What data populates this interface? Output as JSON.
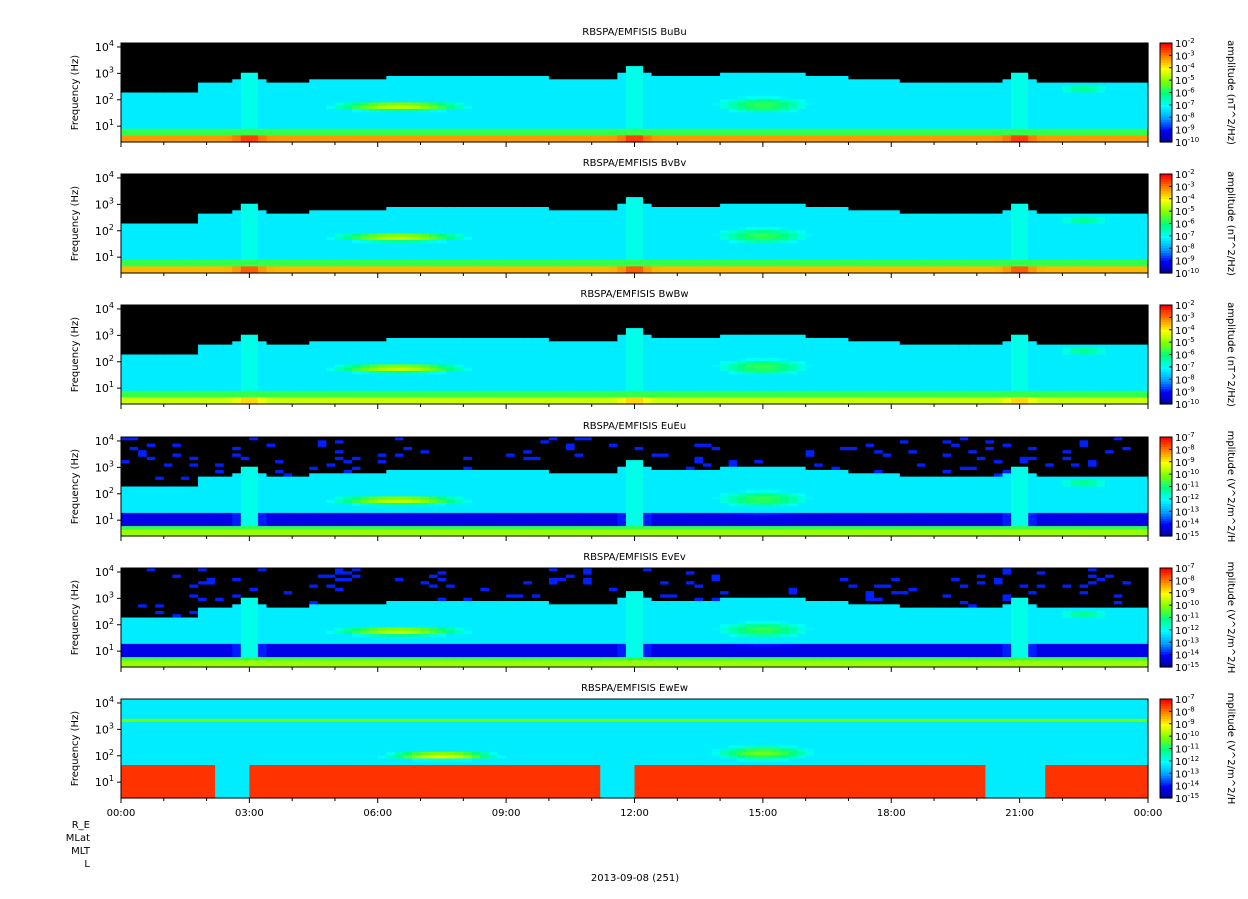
{
  "chart_data": {
    "type": "heatmap",
    "x_ticks": [
      "00:00",
      "03:00",
      "06:00",
      "09:00",
      "12:00",
      "15:00",
      "18:00",
      "21:00",
      "00:00"
    ],
    "x_range_hours": [
      0,
      24
    ],
    "y_scale": "log",
    "y_ticks": [
      "10^1",
      "10^2",
      "10^3",
      "10^4"
    ],
    "ylabel": "Frequency (Hz)",
    "date_label": "2013-09-08 (251)",
    "ephemeris_rows": [
      "R_E",
      "MLat",
      "MLT",
      "L"
    ],
    "colormap": [
      "#00008b",
      "#0000ff",
      "#00a0ff",
      "#00ffff",
      "#00ff80",
      "#80ff00",
      "#ffff00",
      "#ff8000",
      "#ff0000"
    ],
    "panels": [
      {
        "title": "RBSPA/EMFISIS  BuBu",
        "colorbar_label": "amplitude (nT^2/Hz)",
        "cbar_exponents": [
          "-2",
          "-3",
          "-4",
          "-5",
          "-6",
          "-7",
          "-8",
          "-9",
          "-10"
        ],
        "kind": "B",
        "low_band_level": 0.85
      },
      {
        "title": "RBSPA/EMFISIS  BvBv",
        "colorbar_label": "amplitude (nT^2/Hz)",
        "cbar_exponents": [
          "-2",
          "-3",
          "-4",
          "-5",
          "-6",
          "-7",
          "-8",
          "-9",
          "-10"
        ],
        "kind": "B",
        "low_band_level": 0.82
      },
      {
        "title": "RBSPA/EMFISIS  BwBw",
        "colorbar_label": "amplitude (nT^2/Hz)",
        "cbar_exponents": [
          "-2",
          "-3",
          "-4",
          "-5",
          "-6",
          "-7",
          "-8",
          "-9",
          "-10"
        ],
        "kind": "B",
        "low_band_level": 0.7
      },
      {
        "title": "RBSPA/EMFISIS  EuEu",
        "colorbar_label": "mplitude (V^2/m^2/H",
        "cbar_exponents": [
          "-7",
          "-8",
          "-9",
          "-10",
          "-11",
          "-12",
          "-13",
          "-14",
          "-15"
        ],
        "kind": "E",
        "low_band_level": 0.65
      },
      {
        "title": "RBSPA/EMFISIS  EvEv",
        "colorbar_label": "mplitude (V^2/m^2/H",
        "cbar_exponents": [
          "-7",
          "-8",
          "-9",
          "-10",
          "-11",
          "-12",
          "-13",
          "-14",
          "-15"
        ],
        "kind": "E",
        "low_band_level": 0.65
      },
      {
        "title": "RBSPA/EMFISIS  EwEw",
        "colorbar_label": "mplitude (V^2/m^2/H",
        "cbar_exponents": [
          "-7",
          "-8",
          "-9",
          "-10",
          "-11",
          "-12",
          "-13",
          "-14",
          "-15"
        ],
        "kind": "Ew",
        "low_band_level": 1.0
      }
    ]
  }
}
